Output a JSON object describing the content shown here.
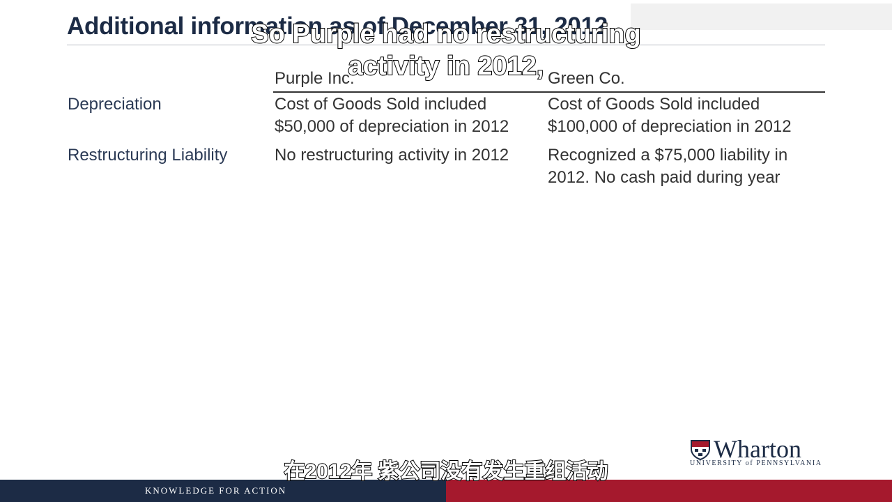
{
  "slide": {
    "title": "Additional information as of December 31, 2012",
    "columns": [
      "Purple Inc.",
      "Green Co."
    ],
    "rows": [
      {
        "label": "Depreciation",
        "purple": [
          "Cost of Goods Sold included",
          "$50,000 of depreciation in 2012"
        ],
        "green": [
          "Cost of Goods Sold included",
          "$100,000 of depreciation in 2012"
        ]
      },
      {
        "label": "Restructuring Liability",
        "purple": [
          "No restructuring activity in 2012"
        ],
        "green": [
          "Recognized a $75,000 liability in",
          "2012.  No cash paid during year"
        ]
      }
    ]
  },
  "captions": {
    "english": [
      "So Purple had no restructuring",
      "activity in 2012,"
    ],
    "chinese": "在2012年 紫公司没有发生重组活动"
  },
  "branding": {
    "logo_word": "Wharton",
    "logo_sub": "UNIVERSITY of PENNSYLVANIA",
    "tagline": "KNOWLEDGE FOR ACTION"
  },
  "colors": {
    "navy": "#1c2b45",
    "red": "#a5192d",
    "text": "#333333"
  }
}
